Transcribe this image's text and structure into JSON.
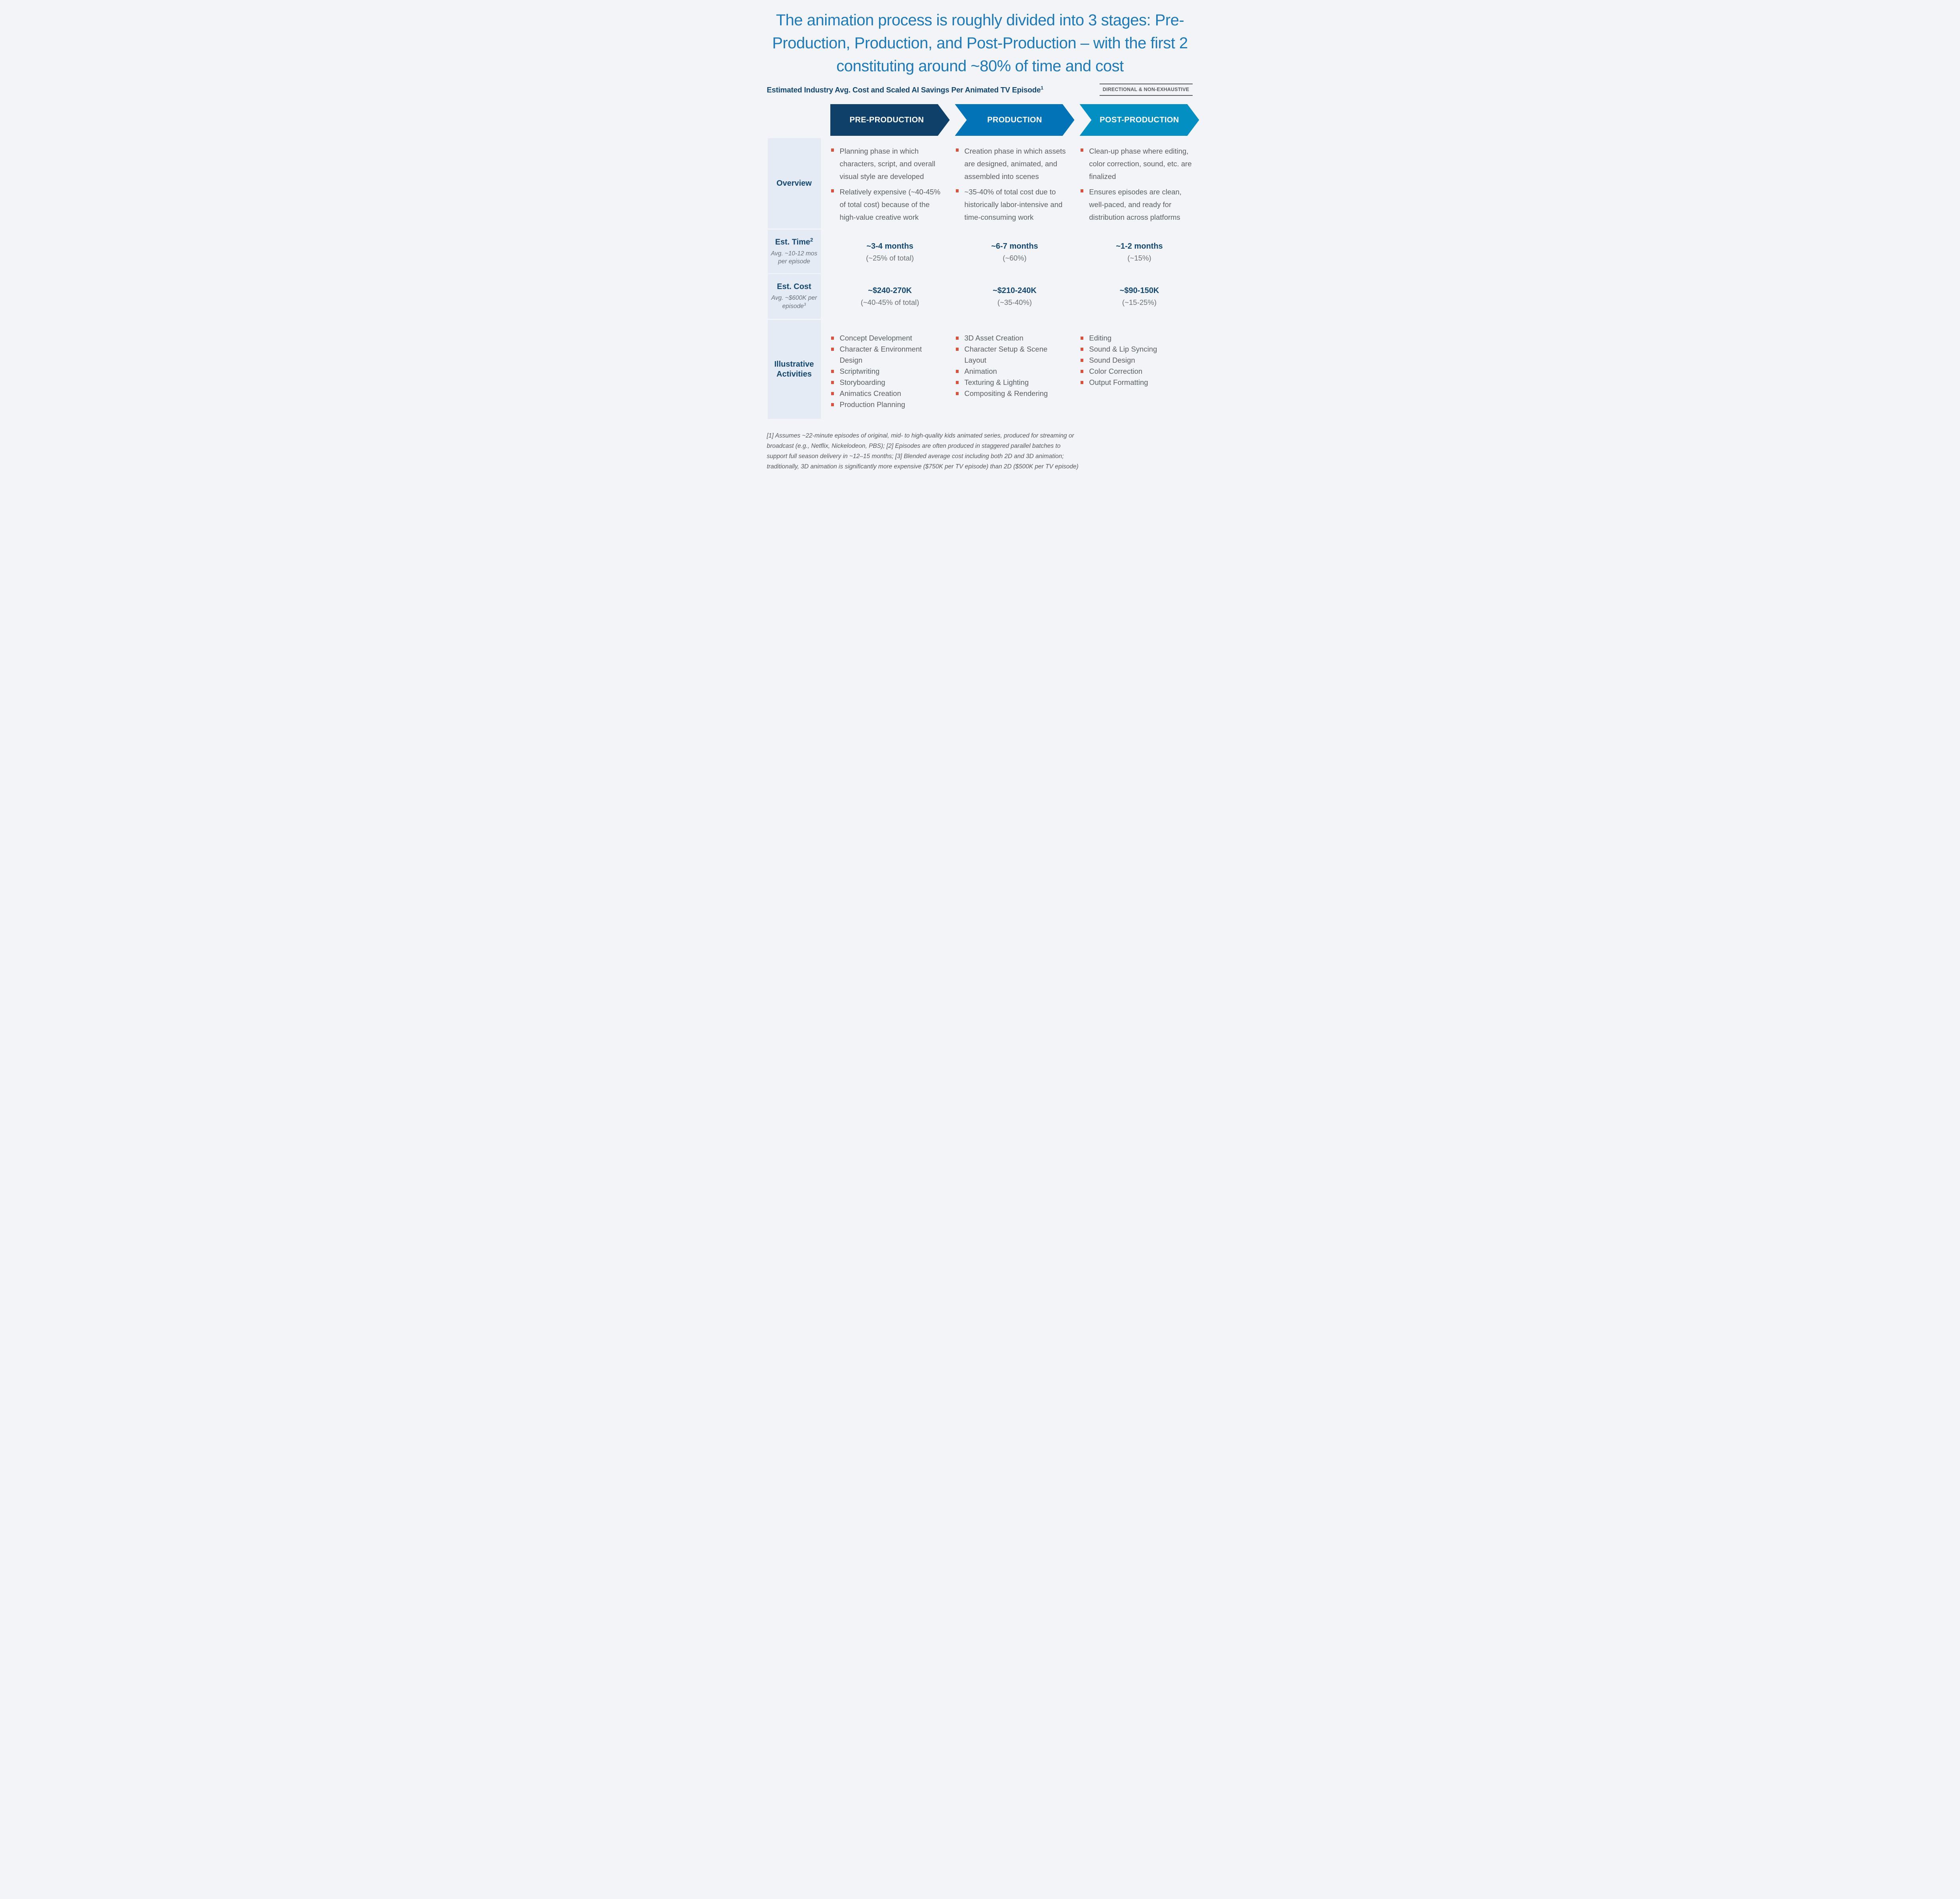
{
  "title": {
    "lines": [
      "The animation process is roughly divided into 3 stages: Pre-",
      "Production, Production, and Post-Production – with the first 2",
      "constituting around ~80% of time and cost"
    ]
  },
  "header": {
    "subtitle": "Estimated Industry Avg. Cost and Scaled AI Savings Per Animated TV Episode",
    "subtitle_superscript": "1",
    "tag": "DIRECTIONAL & NON-EXHAUSTIVE"
  },
  "stages": [
    {
      "label": "PRE-PRODUCTION",
      "color": "#0e4069"
    },
    {
      "label": "PRODUCTION",
      "color": "#0173b6"
    },
    {
      "label": "POST-PRODUCTION",
      "color": "#048fc2"
    }
  ],
  "rows": {
    "overview": {
      "label": "Overview",
      "pre": {
        "bullet1": "Planning phase in which characters, script, and overall visual style are developed",
        "bullet2": "Relatively expensive (~40-45% of total cost) because of the high-value creative work"
      },
      "prod": {
        "bullet1": "Creation phase in which assets are designed, animated, and assembled into scenes",
        "bullet2": "~35-40% of total cost due to historically labor-intensive and time-consuming work"
      },
      "post": {
        "bullet1": "Clean-up phase where editing, color correction, sound, etc. are finalized",
        "bullet2": "Ensures episodes are clean, well-paced, and ready for distribution across platforms"
      }
    },
    "est_time": {
      "label": "Est. Time",
      "label_superscript": "2",
      "sublabel": "Avg. ~10-12 mos per episode",
      "pre": {
        "value": "~3-4 months",
        "note": "(~25% of total)"
      },
      "prod": {
        "value": "~6-7 months",
        "note": "(~60%)"
      },
      "post": {
        "value": "~1-2 months",
        "note": "(~15%)"
      }
    },
    "est_cost": {
      "label": "Est. Cost",
      "sublabel": "Avg. ~$600K per episode",
      "sublabel_superscript": "3",
      "pre": {
        "value": "~$240-270K",
        "note": "(~40-45% of total)"
      },
      "prod": {
        "value": "~$210-240K",
        "note": "(~35-40%)"
      },
      "post": {
        "value": "~$90-150K",
        "note": "(~15-25%)"
      }
    },
    "activities": {
      "label": "Illustrative Activities",
      "pre": {
        "items": [
          "Concept Development",
          "Character & Environment Design",
          "Scriptwriting",
          "Storyboarding",
          "Animatics Creation",
          "Production Planning"
        ]
      },
      "prod": {
        "items": [
          "3D Asset Creation",
          "Character Setup & Scene Layout",
          "Animation",
          "Texturing & Lighting",
          "Compositing & Rendering"
        ]
      },
      "post": {
        "items": [
          "Editing",
          "Sound & Lip Syncing",
          "Sound Design",
          "Color Correction",
          "Output Formatting"
        ]
      }
    }
  },
  "footnote": {
    "lines": [
      "[1] Assumes ~22-minute episodes of original, mid- to high-quality kids animated series, produced for streaming or",
      "broadcast (e.g., Netflix, Nickelodeon, PBS); [2] Episodes are often produced in staggered parallel batches to",
      "support full season delivery in ~12–15 months; [3] Blended average cost including both 2D and 3D animation;",
      "traditionally, 3D animation is significantly more expensive ($750K per TV episode) than 2D ($500K per TV episode)"
    ]
  },
  "colors": {
    "background": "#f2f4f7",
    "sidebar_background": "#e4ebf5",
    "title_blue": "#1e79b6",
    "navy_text": "#134670",
    "body_gray": "#5a6065",
    "bullet_red": "#d9503c",
    "tag_gray": "#595d61"
  }
}
